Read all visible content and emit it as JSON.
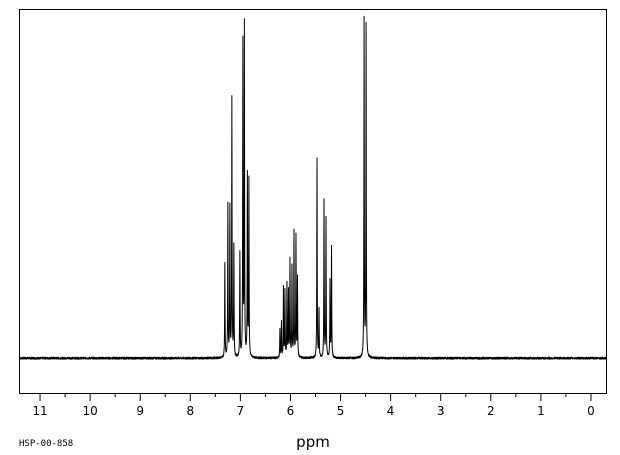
{
  "chart_data": {
    "type": "line",
    "title": "",
    "xlabel": "ppm",
    "ylabel": "",
    "x_reversed": true,
    "xlim": [
      11.4,
      -0.3
    ],
    "ylim": [
      -0.1,
      1.0
    ],
    "xticks": [
      11,
      10,
      9,
      8,
      7,
      6,
      5,
      4,
      3,
      2,
      1,
      0
    ],
    "xtick_labels": [
      "11",
      "10",
      "9",
      "8",
      "7",
      "6",
      "5",
      "4",
      "3",
      "2",
      "1",
      "0"
    ],
    "minor_tick_step": 0.5,
    "grid": false,
    "baseline": 0.0,
    "noise": 0.003,
    "series": [
      {
        "peaks": [
          {
            "x": 7.31,
            "y": 0.27
          },
          {
            "x": 7.25,
            "y": 0.44
          },
          {
            "x": 7.21,
            "y": 0.43
          },
          {
            "x": 7.17,
            "y": 0.74
          },
          {
            "x": 7.13,
            "y": 0.32
          },
          {
            "x": 7.01,
            "y": 0.3
          },
          {
            "x": 6.95,
            "y": 0.9
          },
          {
            "x": 6.92,
            "y": 0.95
          },
          {
            "x": 6.86,
            "y": 0.52
          },
          {
            "x": 6.83,
            "y": 0.51
          },
          {
            "x": 6.21,
            "y": 0.08
          },
          {
            "x": 6.18,
            "y": 0.1
          },
          {
            "x": 6.14,
            "y": 0.2
          },
          {
            "x": 6.11,
            "y": 0.19
          },
          {
            "x": 6.07,
            "y": 0.21
          },
          {
            "x": 6.04,
            "y": 0.19
          },
          {
            "x": 6.01,
            "y": 0.28
          },
          {
            "x": 5.97,
            "y": 0.26
          },
          {
            "x": 5.93,
            "y": 0.36
          },
          {
            "x": 5.89,
            "y": 0.35
          },
          {
            "x": 5.86,
            "y": 0.23
          },
          {
            "x": 5.47,
            "y": 0.57
          },
          {
            "x": 5.43,
            "y": 0.14
          },
          {
            "x": 5.33,
            "y": 0.45
          },
          {
            "x": 5.29,
            "y": 0.4
          },
          {
            "x": 5.21,
            "y": 0.22
          },
          {
            "x": 5.18,
            "y": 0.32
          },
          {
            "x": 4.53,
            "y": 0.97
          },
          {
            "x": 4.49,
            "y": 0.95
          }
        ]
      }
    ]
  },
  "figure": {
    "source_id": "HSP-00-858",
    "line_color": "#000000",
    "frame_color": "#000000",
    "background": "#ffffff"
  }
}
